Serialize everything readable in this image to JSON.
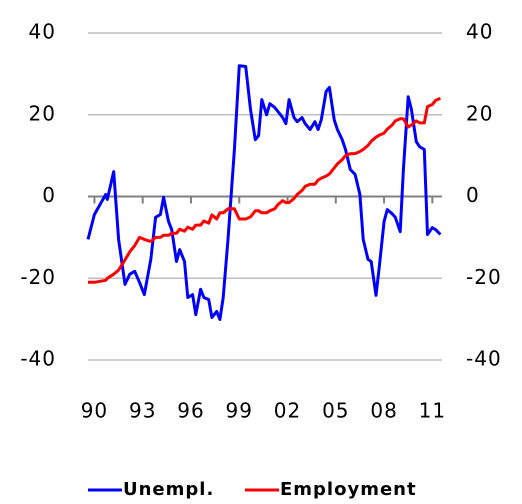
{
  "chart_data": {
    "type": "line",
    "x": [
      1989.6,
      1990.0,
      1990.7,
      1990.8,
      1991.2,
      1991.5,
      1991.9,
      1992.2,
      1992.5,
      1992.8,
      1993.1,
      1993.5,
      1993.8,
      1994.1,
      1994.3,
      1994.6,
      1994.8,
      1995.1,
      1995.3,
      1995.6,
      1995.8,
      1996.1,
      1996.3,
      1996.6,
      1996.8,
      1997.1,
      1997.3,
      1997.6,
      1997.8,
      1998.0,
      1998.3,
      1998.7,
      1999.0,
      1999.4,
      1999.7,
      2000.0,
      2000.2,
      2000.4,
      2000.7,
      2000.9,
      2001.2,
      2001.4,
      2001.7,
      2001.9,
      2002.1,
      2002.4,
      2002.6,
      2002.9,
      2003.1,
      2003.4,
      2003.7,
      2003.9,
      2004.1,
      2004.4,
      2004.6,
      2004.9,
      2005.1,
      2005.4,
      2005.6,
      2005.9,
      2006.2,
      2006.5,
      2006.7,
      2007.0,
      2007.2,
      2007.5,
      2007.7,
      2008.0,
      2008.2,
      2008.5,
      2008.7,
      2009.0,
      2009.2,
      2009.5,
      2009.7,
      2010.0,
      2010.2,
      2010.5,
      2010.7,
      2011.0,
      2011.2,
      2011.5
    ],
    "series": [
      {
        "name": "Unempl.",
        "color": "#0000ff",
        "values": [
          -10.5,
          -4.4,
          0.5,
          -0.7,
          6.1,
          -10.5,
          -21.5,
          -19,
          -18.3,
          -21,
          -24,
          -15.4,
          -5.1,
          -4.4,
          -0.2,
          -6.1,
          -8.1,
          -15.9,
          -13,
          -15.9,
          -24.7,
          -24,
          -28.9,
          -22.7,
          -24.7,
          -25.2,
          -29.6,
          -28.1,
          -30.1,
          -24.7,
          -10.5,
          11.5,
          32,
          31.8,
          21.3,
          13.9,
          14.9,
          23.7,
          20,
          22.7,
          21.8,
          20.8,
          19.3,
          17.8,
          23.7,
          19.3,
          18.3,
          19.3,
          17.8,
          16.4,
          18.3,
          16.4,
          18.8,
          25.7,
          26.7,
          18.8,
          16.4,
          13.9,
          11.5,
          6.6,
          5.4,
          0.5,
          -10.5,
          -15.4,
          -15.9,
          -24.2,
          -17.4,
          -6.1,
          -3.2,
          -4.2,
          -5.1,
          -8.6,
          6.6,
          24.4,
          21.3,
          13.4,
          12.2,
          11.5,
          -9.3,
          -7.6,
          -8.1,
          -9.3
        ]
      },
      {
        "name": "Employment",
        "color": "#ff0000",
        "values": [
          -21,
          -21,
          -20.5,
          -20,
          -19,
          -18,
          -15.5,
          -13.5,
          -12,
          -10,
          -10.5,
          -11,
          -10,
          -10,
          -9.5,
          -9.5,
          -9,
          -9,
          -8,
          -8.5,
          -7.5,
          -8,
          -7,
          -7,
          -6,
          -6.5,
          -4.5,
          -5.5,
          -4,
          -4,
          -3,
          -3,
          -5.5,
          -5.5,
          -5,
          -3.5,
          -3.5,
          -4,
          -4,
          -3.5,
          -3,
          -2,
          -1,
          -1.5,
          -1.5,
          -0.5,
          0.5,
          1.5,
          2.5,
          3,
          3,
          4,
          4.5,
          5,
          5.5,
          7,
          8,
          9,
          10,
          10.5,
          10.5,
          11,
          11.5,
          12.5,
          13.5,
          14.5,
          15,
          15.5,
          16.5,
          17.5,
          18.5,
          19,
          19,
          17,
          17.5,
          18.5,
          18,
          18,
          22,
          22.5,
          23.5,
          24
        ]
      }
    ],
    "xlim": [
      1989.6,
      2011.6
    ],
    "xticks": [
      {
        "value": 1990,
        "label": "90"
      },
      {
        "value": 1993,
        "label": "93"
      },
      {
        "value": 1996,
        "label": "96"
      },
      {
        "value": 1999,
        "label": "99"
      },
      {
        "value": 2002,
        "label": "02"
      },
      {
        "value": 2005,
        "label": "05"
      },
      {
        "value": 2008,
        "label": "08"
      },
      {
        "value": 2011,
        "label": "11"
      }
    ],
    "ylim": [
      -40,
      40
    ],
    "yticks": [
      -40,
      -20,
      0,
      20,
      40
    ],
    "y2lim": [
      -40,
      40
    ],
    "y2ticks": [
      -40,
      -20,
      0,
      20,
      40
    ],
    "grid": true,
    "legend": "bottom"
  }
}
